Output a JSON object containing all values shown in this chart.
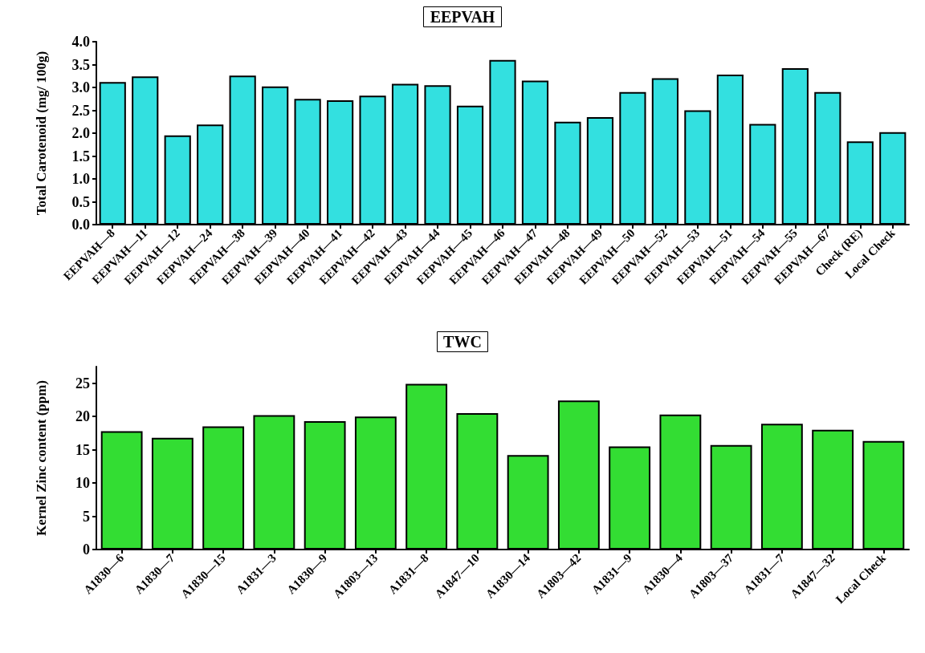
{
  "chart_data": [
    {
      "type": "bar",
      "title": "EEPVAH",
      "ylabel": "Total Carotenoid (mg/ 100g)",
      "categories": [
        "EEPVAH—8",
        "EEPVAH—11",
        "EEPVAH—12",
        "EEPVAH—24",
        "EEPVAH—38",
        "EEPVAH—39",
        "EEPVAH—40",
        "EEPVAH—41",
        "EEPVAH—42",
        "EEPVAH—43",
        "EEPVAH—44",
        "EEPVAH—45",
        "EEPVAH—46",
        "EEPVAH—47",
        "EEPVAH—48",
        "EEPVAH—49",
        "EEPVAH—50",
        "EEPVAH—52",
        "EEPVAH—53",
        "EEPVAH—51",
        "EEPVAH—54",
        "EEPVAH—55",
        "EEPVAH—67",
        "Check (RE)",
        "Local Check"
      ],
      "values": [
        3.12,
        3.24,
        1.95,
        2.19,
        3.26,
        3.02,
        2.75,
        2.72,
        2.82,
        3.08,
        3.05,
        2.6,
        3.6,
        3.15,
        2.25,
        2.35,
        2.9,
        3.2,
        2.5,
        3.28,
        2.2,
        3.42,
        2.9,
        1.82,
        2.02
      ],
      "color": "#33e0e0",
      "ylim": [
        0,
        4.0
      ],
      "yticks": [
        {
          "value": 0,
          "label": "0.0"
        },
        {
          "value": 0.5,
          "label": "0.5"
        },
        {
          "value": 1,
          "label": "1.0"
        },
        {
          "value": 1.5,
          "label": "1.5"
        },
        {
          "value": 2,
          "label": "2.0"
        },
        {
          "value": 2.5,
          "label": "2.5"
        },
        {
          "value": 3,
          "label": "3.0"
        },
        {
          "value": 3.5,
          "label": "3.5"
        },
        {
          "value": 4,
          "label": "4.0"
        }
      ]
    },
    {
      "type": "bar",
      "title": "TWC",
      "ylabel": "Kernel Zinc content (ppm)",
      "categories": [
        "A1830—6",
        "A1830—7",
        "A1830—15",
        "A1831—3",
        "A1830—9",
        "A1803—13",
        "A1831—8",
        "A1847—10",
        "A1830—14",
        "A1803—42",
        "A1831—9",
        "A1830—4",
        "A1803—37",
        "A1831—7",
        "A1847—32",
        "Local Check"
      ],
      "values": [
        17.8,
        16.8,
        18.5,
        20.2,
        19.3,
        20,
        24.9,
        20.5,
        14.2,
        22.4,
        15.5,
        20.3,
        15.7,
        18.9,
        18,
        16.3
      ],
      "color": "#33dd33",
      "ylim": [
        0,
        27.5
      ],
      "yticks": [
        0,
        5,
        10,
        15,
        20,
        25
      ]
    }
  ]
}
